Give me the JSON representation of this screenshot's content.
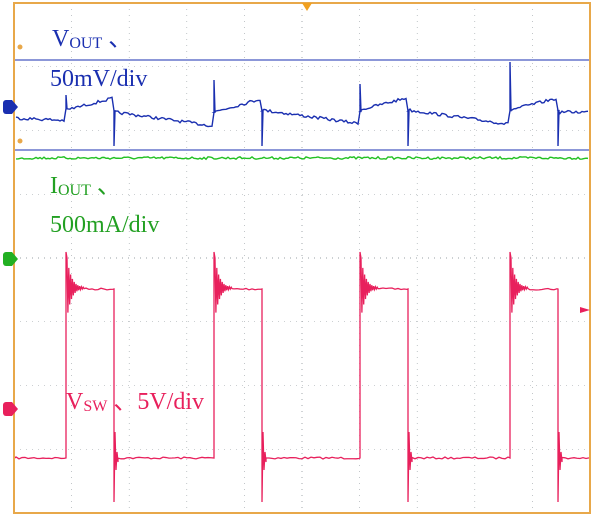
{
  "chart_data": {
    "type": "line",
    "title": "",
    "xlabel": "",
    "ylabel": "",
    "grid": true,
    "divisions": {
      "x": 10,
      "y": 8
    },
    "colors": {
      "grid": "#9aa0a6",
      "frame": "#e8a84a",
      "vout": "#1a2fb0",
      "iout": "#22c022",
      "vsw": "#e8205c"
    },
    "series": [
      {
        "key": "vout",
        "label_prefix": "V",
        "label_sub": "OUT",
        "label_suffix": "、",
        "label_line2": "50mV/div",
        "color": "#1a2fb0"
      },
      {
        "key": "iout",
        "label_prefix": "I",
        "label_sub": "OUT",
        "label_suffix": "、",
        "label_line2": "500mA/div",
        "color": "#22c022"
      },
      {
        "key": "vsw",
        "label_prefix": "V",
        "label_sub": "SW",
        "label_suffix": "、5V/div",
        "label_line2": "",
        "color": "#e8205c"
      }
    ]
  }
}
